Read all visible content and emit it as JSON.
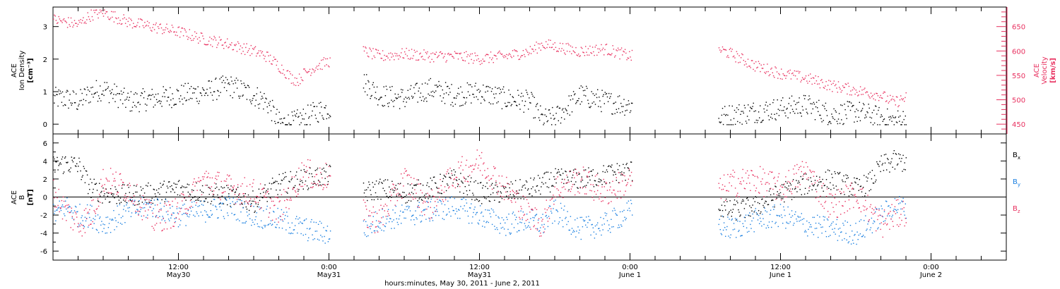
{
  "xaxis": {
    "label": "hours:minutes, May 30, 2011 - June  2, 2011",
    "ticks": [
      {
        "t": 12,
        "time": "12:00",
        "date": "May30"
      },
      {
        "t": 24,
        "time": "0:00",
        "date": "May31"
      },
      {
        "t": 36,
        "time": "12:00",
        "date": "May31"
      },
      {
        "t": 48,
        "time": "0:00",
        "date": "June 1"
      },
      {
        "t": 60,
        "time": "12:00",
        "date": "June 1"
      },
      {
        "t": 72,
        "time": "0:00",
        "date": "June 2"
      }
    ],
    "range_hours": [
      2,
      78
    ]
  },
  "colors": {
    "axes": "#000000",
    "velocity": "#e8305f",
    "density": "#000000",
    "bx": "#000000",
    "by": "#1a7fe0",
    "bz": "#e8305f"
  },
  "chart_data": [
    {
      "type": "scatter",
      "title": "",
      "ylabel": [
        "ACE",
        "Ion Density",
        "[cm⁻³]"
      ],
      "ylabel_right": [
        "ACE",
        "Velocity",
        "[km/s]"
      ],
      "ylim": [
        -0.3,
        3.6
      ],
      "yticks": [
        "0",
        "1",
        "2",
        "3"
      ],
      "ytick_values": [
        0,
        1,
        2,
        3
      ],
      "ylim_right": [
        430,
        690
      ],
      "yticks_right": [
        "450",
        "500",
        "550",
        "600",
        "650"
      ],
      "ytick_values_right": [
        450,
        500,
        550,
        600,
        650
      ],
      "data_gaps_hours": [
        [
          24.1,
          26.7
        ],
        [
          48.2,
          55.0
        ],
        [
          70.0,
          78.0
        ]
      ],
      "series": [
        {
          "axis": "right",
          "x": [
            2,
            3,
            4,
            5,
            6,
            7,
            8,
            10,
            12,
            14,
            16,
            18,
            19,
            20,
            21,
            21.5,
            22,
            23,
            24,
            26.8,
            28,
            30,
            32,
            34,
            36,
            38,
            40,
            41,
            42,
            44,
            46,
            48,
            55,
            56,
            58,
            60,
            62,
            64,
            66,
            68,
            69,
            70
          ],
          "values": [
            665,
            660,
            655,
            675,
            680,
            670,
            660,
            650,
            640,
            625,
            615,
            600,
            590,
            570,
            545,
            540,
            555,
            570,
            580,
            600,
            590,
            595,
            590,
            590,
            585,
            590,
            600,
            615,
            610,
            600,
            605,
            590,
            605,
            595,
            570,
            555,
            545,
            530,
            520,
            510,
            495,
            505
          ]
        },
        {
          "axis": "left",
          "x": [
            2,
            3,
            4,
            5,
            6,
            8,
            10,
            12,
            14,
            16,
            18,
            19,
            20,
            21,
            22,
            23,
            24,
            26.8,
            28,
            30,
            32,
            34,
            36,
            38,
            40,
            41,
            42,
            44,
            46,
            48,
            55,
            56,
            58,
            60,
            62,
            64,
            66,
            68,
            69,
            70
          ],
          "values": [
            0.8,
            0.8,
            0.7,
            1.0,
            1.1,
            0.7,
            0.8,
            0.9,
            1.0,
            1.2,
            0.9,
            0.7,
            0.05,
            0.05,
            0.2,
            0.4,
            0.5,
            1.3,
            0.9,
            0.8,
            1.1,
            0.9,
            1.0,
            0.8,
            0.7,
            0.15,
            0.2,
            0.9,
            0.7,
            0.6,
            0.2,
            0.3,
            0.4,
            0.5,
            0.6,
            0.3,
            0.4,
            0.2,
            0.1,
            0.2
          ]
        }
      ]
    },
    {
      "type": "scatter",
      "title": "",
      "ylabel": [
        "ACE",
        "B",
        "[nT]"
      ],
      "ylim": [
        -7,
        7
      ],
      "yticks": [
        "-6",
        "-4",
        "-2",
        "0",
        "2",
        "4",
        "6"
      ],
      "ytick_values": [
        -6,
        -4,
        -2,
        0,
        2,
        4,
        6
      ],
      "zero_line": 0,
      "legend_position": "right",
      "legend": [
        "B",
        "B",
        "B"
      ],
      "legend_subscripts": [
        "x",
        "y",
        "z"
      ],
      "data_gaps_hours": [
        [
          24.1,
          26.7
        ],
        [
          48.2,
          55.0
        ],
        [
          70.0,
          78.0
        ]
      ],
      "series": [
        {
          "x": [
            2,
            3,
            4,
            5,
            6,
            8,
            10,
            12,
            14,
            16,
            18,
            20,
            22,
            24,
            26.8,
            28,
            30,
            32,
            34,
            36,
            38,
            40,
            42,
            44,
            46,
            48,
            55,
            56,
            58,
            60,
            62,
            64,
            66,
            67,
            68,
            69,
            70
          ],
          "values": [
            3.5,
            3.8,
            3.5,
            1.0,
            0.5,
            0.2,
            0.5,
            1.0,
            0.5,
            0.2,
            -0.5,
            1.5,
            2.0,
            2.5,
            0.5,
            1.0,
            0.5,
            1.0,
            2.0,
            0.5,
            0.5,
            1.0,
            2.0,
            2.0,
            2.5,
            3.0,
            -1.0,
            -1.5,
            -1.0,
            0.5,
            1.5,
            2.0,
            1.0,
            1.5,
            3.5,
            4.0,
            4.0
          ]
        },
        {
          "x": [
            2,
            3,
            4,
            5,
            6,
            8,
            10,
            12,
            14,
            16,
            18,
            20,
            22,
            23,
            24,
            26.8,
            28,
            30,
            32,
            34,
            36,
            38,
            40,
            41,
            42,
            44,
            46,
            48,
            55,
            56,
            58,
            60,
            62,
            64,
            66,
            67,
            68,
            69,
            70
          ],
          "values": [
            -2.0,
            -1.0,
            -2.0,
            -2.0,
            -3.0,
            -1.5,
            -1.0,
            -2.0,
            -1.5,
            -1.0,
            -2.0,
            -2.5,
            -3.5,
            -3.8,
            -4.0,
            -3.5,
            -2.5,
            -2.0,
            -1.5,
            -1.0,
            -2.0,
            -3.0,
            -2.5,
            -3.0,
            -1.5,
            -3.5,
            -3.0,
            -1.5,
            -3.0,
            -3.5,
            -2.5,
            -2.0,
            -3.0,
            -3.5,
            -4.0,
            -3.0,
            -2.0,
            -1.0,
            -1.0
          ]
        },
        {
          "x": [
            2,
            3,
            4,
            5,
            6,
            8,
            10,
            12,
            14,
            16,
            18,
            20,
            22,
            23,
            24,
            26.8,
            28,
            30,
            32,
            34,
            36,
            38,
            40,
            41,
            42,
            44,
            46,
            48,
            55,
            56,
            58,
            60,
            62,
            64,
            66,
            68,
            69,
            70
          ],
          "values": [
            0.5,
            -1.5,
            -3.0,
            -2.0,
            2.0,
            1.0,
            -2.5,
            -1.5,
            2.0,
            1.0,
            0.5,
            -1.5,
            3.0,
            2.0,
            2.5,
            -2.0,
            -2.5,
            2.0,
            -1.0,
            2.5,
            4.0,
            1.0,
            -2.0,
            -3.0,
            1.0,
            2.0,
            0.5,
            2.0,
            0.5,
            1.5,
            2.0,
            1.0,
            3.0,
            -1.0,
            0.5,
            -3.0,
            -2.0,
            -1.5
          ]
        }
      ]
    }
  ]
}
